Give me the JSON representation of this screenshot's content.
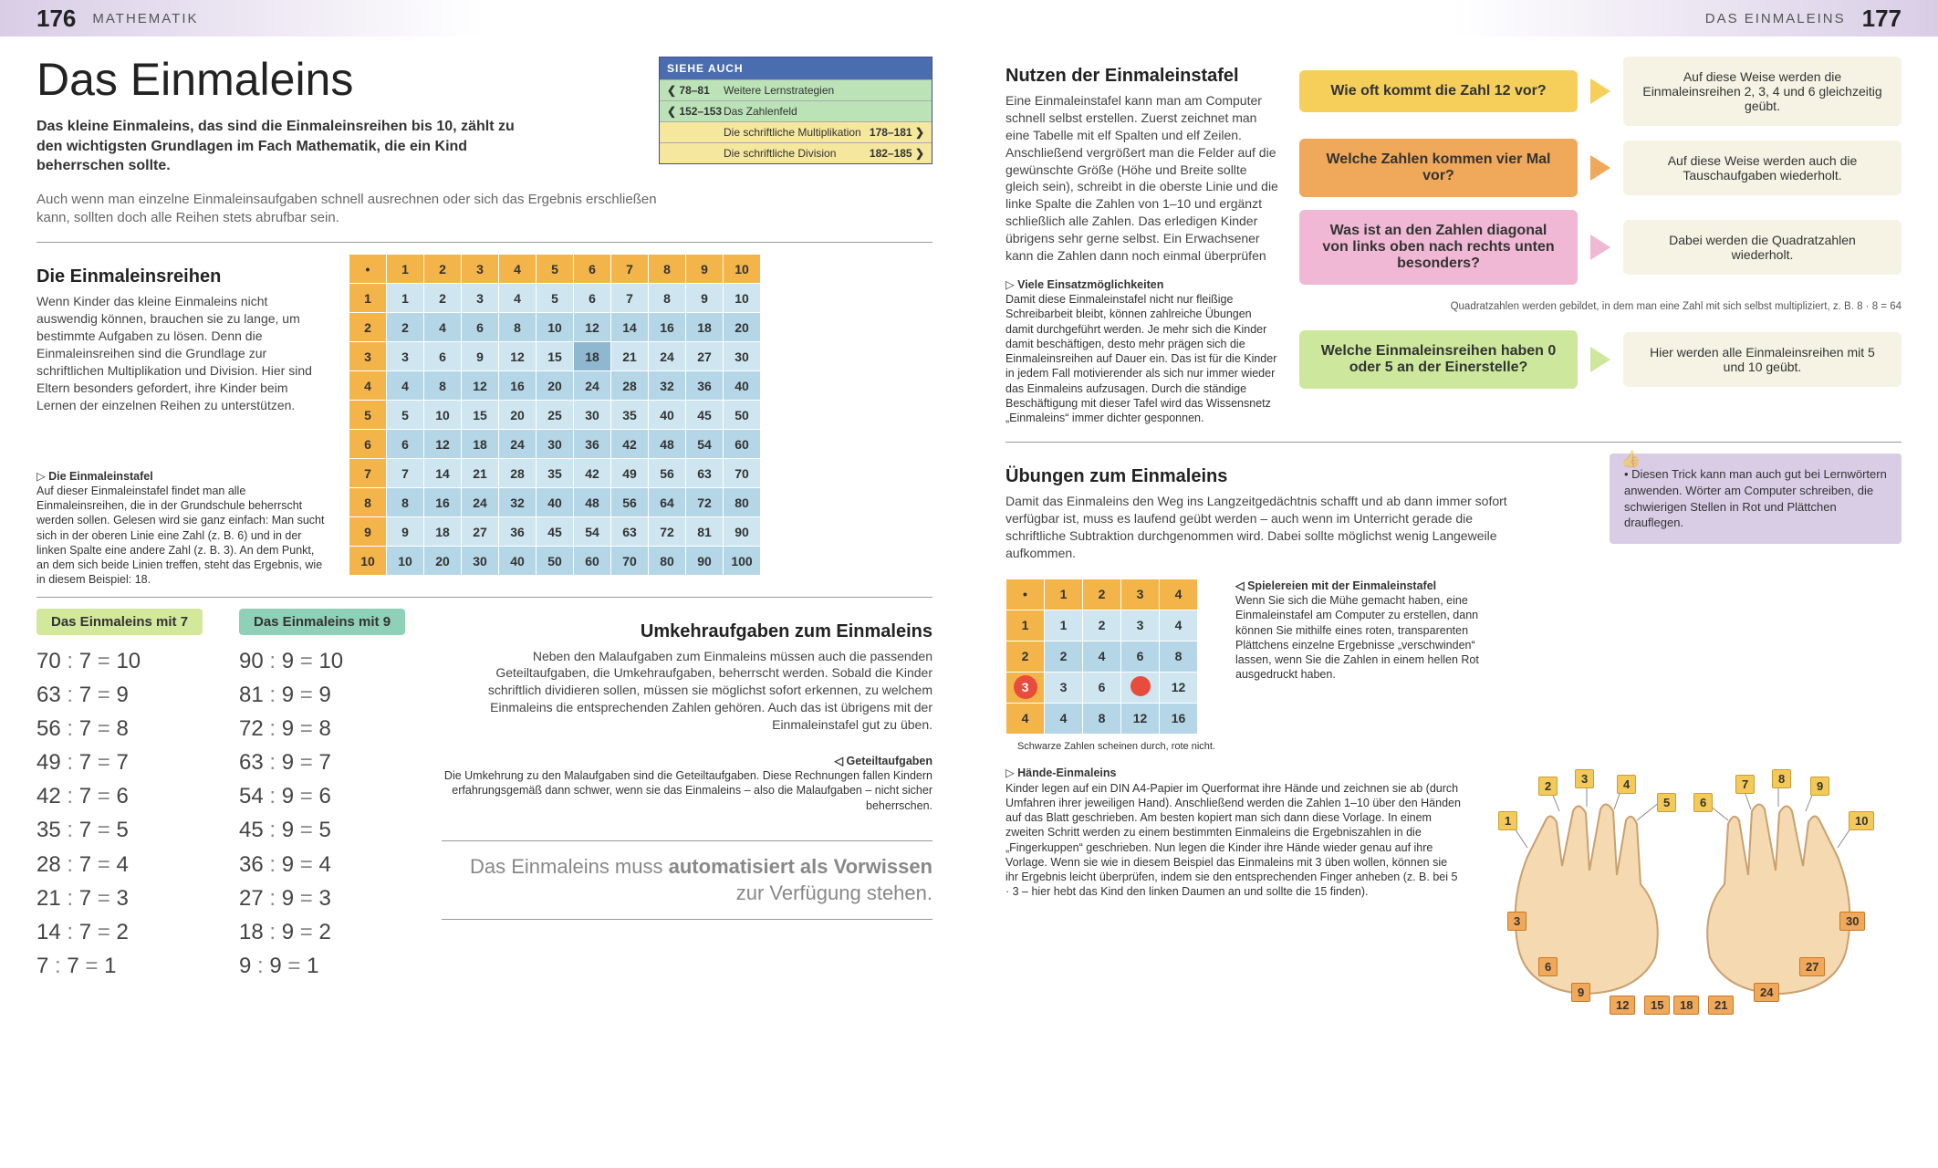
{
  "leftPage": {
    "pageNum": "176",
    "section": "MATHEMATIK",
    "title": "Das Einmaleins",
    "intro_bold": "Das kleine Einmaleins, das sind die Einmaleinsreihen bis 10, zählt zu den wichtigsten Grundlagen im Fach Mathematik, die ein Kind beherrschen sollte.",
    "intro_reg": "Auch wenn man einzelne Einmaleinsaufgaben schnell ausrechnen oder sich das Ergebnis erschließen kann, sollten doch alle Reihen stets abrufbar sein.",
    "seeAlso": {
      "header": "SIEHE AUCH",
      "rows": [
        {
          "cls": "g",
          "pg": "❮ 78–81",
          "lbl": "Weitere Lernstrategien",
          "arr": ""
        },
        {
          "cls": "g",
          "pg": "❮ 152–153",
          "lbl": "Das Zahlenfeld",
          "arr": ""
        },
        {
          "cls": "y",
          "pg": "",
          "lbl": "Die schriftliche Multiplikation",
          "arr": "178–181 ❯"
        },
        {
          "cls": "y",
          "pg": "",
          "lbl": "Die schriftliche Division",
          "arr": "182–185 ❯"
        }
      ]
    },
    "h2_rows": "Die Einmaleinsreihen",
    "rows_body": "Wenn Kinder das kleine Einmaleins nicht auswendig können, brauchen sie zu lange, um bestimmte Aufgaben zu lösen. Denn die Einmaleinsreihen sind die Grundlage zur schriftlichen Multiplikation und Division. Hier sind Eltern besonders gefordert, ihre Kinder beim Lernen der einzelnen Reihen zu unterstützen.",
    "caption1_title": "Die Einmaleinstafel",
    "caption1_body": "Auf dieser Einmaleinstafel findet man alle Einmaleinsreihen, die in der Grundschule beherrscht werden sollen. Gelesen wird sie ganz einfach: Man sucht sich in der oberen Linie eine Zahl (z. B. 6) und in der linken Spalte eine andere Zahl (z. B. 3). An dem Punkt, an dem sich beide Linien treffen, steht das Ergebnis, wie in diesem Beispiel: 18.",
    "multHeader": [
      "•",
      "1",
      "2",
      "3",
      "4",
      "5",
      "6",
      "7",
      "8",
      "9",
      "10"
    ],
    "multRows": [
      [
        "1",
        "1",
        "2",
        "3",
        "4",
        "5",
        "6",
        "7",
        "8",
        "9",
        "10"
      ],
      [
        "2",
        "2",
        "4",
        "6",
        "8",
        "10",
        "12",
        "14",
        "16",
        "18",
        "20"
      ],
      [
        "3",
        "3",
        "6",
        "9",
        "12",
        "15",
        "18",
        "21",
        "24",
        "27",
        "30"
      ],
      [
        "4",
        "4",
        "8",
        "12",
        "16",
        "20",
        "24",
        "28",
        "32",
        "36",
        "40"
      ],
      [
        "5",
        "5",
        "10",
        "15",
        "20",
        "25",
        "30",
        "35",
        "40",
        "45",
        "50"
      ],
      [
        "6",
        "6",
        "12",
        "18",
        "24",
        "30",
        "36",
        "42",
        "48",
        "54",
        "60"
      ],
      [
        "7",
        "7",
        "14",
        "21",
        "28",
        "35",
        "42",
        "49",
        "56",
        "63",
        "70"
      ],
      [
        "8",
        "8",
        "16",
        "24",
        "32",
        "40",
        "48",
        "56",
        "64",
        "72",
        "80"
      ],
      [
        "9",
        "9",
        "18",
        "27",
        "36",
        "45",
        "54",
        "63",
        "72",
        "81",
        "90"
      ],
      [
        "10",
        "10",
        "20",
        "30",
        "40",
        "50",
        "60",
        "70",
        "80",
        "90",
        "100"
      ]
    ],
    "highlight": {
      "row": 2,
      "col": 6
    },
    "div7_title": "Das Einmaleins mit 7",
    "div9_title": "Das Einmaleins mit 9",
    "div7": [
      [
        "70",
        "7",
        "10"
      ],
      [
        "63",
        "7",
        "9"
      ],
      [
        "56",
        "7",
        "8"
      ],
      [
        "49",
        "7",
        "7"
      ],
      [
        "42",
        "7",
        "6"
      ],
      [
        "35",
        "7",
        "5"
      ],
      [
        "28",
        "7",
        "4"
      ],
      [
        "21",
        "7",
        "3"
      ],
      [
        "14",
        "7",
        "2"
      ],
      [
        "7",
        "7",
        "1"
      ]
    ],
    "div9": [
      [
        "90",
        "9",
        "10"
      ],
      [
        "81",
        "9",
        "9"
      ],
      [
        "72",
        "9",
        "8"
      ],
      [
        "63",
        "9",
        "7"
      ],
      [
        "54",
        "9",
        "6"
      ],
      [
        "45",
        "9",
        "5"
      ],
      [
        "36",
        "9",
        "4"
      ],
      [
        "27",
        "9",
        "3"
      ],
      [
        "18",
        "9",
        "2"
      ],
      [
        "9",
        "9",
        "1"
      ]
    ],
    "h2_umkehr": "Umkehraufgaben zum Einmaleins",
    "umkehr_body": "Neben den Malaufgaben zum Einmaleins müssen auch die passenden Geteiltaufgaben, die Umkehraufgaben, beherrscht werden. Sobald die Kinder schriftlich dividieren sollen, müssen sie möglichst sofort erkennen, zu welchem Einmaleins die entsprechenden Zahlen gehören. Auch das ist übrigens mit der Einmaleinstafel gut zu üben.",
    "caption2_title": "Geteiltaufgaben",
    "caption2_body": "Die Umkehrung zu den Malaufgaben sind die Geteiltaufgaben. Diese Rechnungen fallen Kindern erfahrungsgemäß dann schwer, wenn sie das Einmaleins – also die Malaufgaben – nicht sicher beherrschen.",
    "quote_a": "Das Einmaleins muss ",
    "quote_b": "automatisiert als Vorwissen",
    "quote_c": " zur Verfügung stehen."
  },
  "rightPage": {
    "pageNum": "177",
    "section": "DAS EINMALEINS",
    "h2_nutzen": "Nutzen der Einmaleinstafel",
    "nutzen_body": "Eine Einmaleinstafel kann man am Computer schnell selbst erstellen. Zuerst zeichnet man eine Tabelle mit elf Spalten und elf Zeilen. Anschließend vergrößert man die Felder auf die gewünschte Größe (Höhe und Breite sollte gleich sein), schreibt in die oberste Linie und die linke Spalte die Zahlen von 1–10 und ergänzt schließlich alle Zahlen. Das erledigen Kinder übrigens sehr gerne selbst. Ein Erwachsener kann die Zahlen dann noch einmal überprüfen",
    "caption_viele_t": "Viele Einsatzmöglichkeiten",
    "caption_viele_b": "Damit diese Einmaleinstafel nicht nur fleißige Schreibarbeit bleibt, können zahlreiche Übungen damit durchgeführt werden. Je mehr sich die Kinder damit beschäftigen, desto mehr prägen sich die Einmaleinsreihen auf Dauer ein. Das ist für die Kinder in jedem Fall motivierender als sich nur immer wieder das Einmaleins aufzusagen. Durch die ständige Beschäftigung mit dieser Tafel wird das Wissensnetz „Einmaleins“ immer dichter gesponnen.",
    "callouts": [
      {
        "q": "Wie oft kommt die Zahl 12 vor?",
        "a": "Auf diese Weise werden die Einmaleinsreihen 2, 3, 4 und 6 gleichzeitig geübt.",
        "c": "yellow"
      },
      {
        "q": "Welche Zahlen kommen vier Mal vor?",
        "a": "Auf diese Weise werden auch die Tauschaufgaben wiederholt.",
        "c": "orange"
      },
      {
        "q": "Was ist an den Zahlen diagonal von links oben nach rechts unten besonders?",
        "a": "Dabei werden die Quadratzahlen wiederholt.",
        "c": "pink"
      },
      {
        "q": "Welche Einmaleinsreihen haben 0 oder 5 an der Einerstelle?",
        "a": "Hier werden alle Einmaleinsreihen mit 5 und 10 geübt.",
        "c": "green"
      }
    ],
    "qnote": "Quadratzahlen werden gebildet, in dem man eine Zahl mit sich selbst multipliziert, z. B. 8 · 8 = 64",
    "h2_ueb": "Übungen zum Einmaleins",
    "ueb_body": "Damit das Einmaleins den Weg ins Langzeitgedächtnis schafft und ab dann immer sofort verfügbar ist, muss es laufend geübt werden – auch wenn im Unterricht gerade die schriftliche Subtraktion durchgenommen wird. Dabei sollte möglichst wenig Langeweile aufkommen.",
    "tip": "• Diesen Trick kann man auch gut bei Lernwörtern anwenden. Wörter am Computer schreiben, die schwierigen Stellen in Rot und Plättchen drauflegen.",
    "smallHeader": [
      "•",
      "1",
      "2",
      "3",
      "4"
    ],
    "smallRows": [
      [
        "1",
        "1",
        "2",
        "3",
        "4"
      ],
      [
        "2",
        "2",
        "4",
        "6",
        "8"
      ],
      [
        "3",
        "3",
        "6",
        "●",
        "12"
      ],
      [
        "4",
        "4",
        "8",
        "12",
        "16"
      ]
    ],
    "caption_sp_t": "Spielereien mit der Einmaleinstafel",
    "caption_sp_b": "Wenn Sie sich die Mühe gemacht haben, eine Einmaleinstafel am Computer zu erstellen, dann können Sie mithilfe eines roten, transparenten Plättchens einzelne Ergebnisse „verschwinden“ lassen, wenn Sie die Zahlen in einem hellen Rot ausgedruckt haben.",
    "arrow_note": "Schwarze Zahlen scheinen durch, rote nicht.",
    "caption_hand_t": "Hände-Einmaleins",
    "caption_hand_b": "Kinder legen auf ein DIN A4-Papier im Querformat ihre Hände und zeichnen sie ab (durch Umfahren ihrer jeweiligen Hand). Anschließend werden die Zahlen 1–10 über den Händen auf das Blatt geschrieben. Am besten kopiert man sich dann diese Vorlage. In einem zweiten Schritt werden zu einem bestimmten Einmaleins die Ergebniszahlen in die „Fingerkuppen“ geschrieben. Nun legen die Kinder ihre Hände wieder genau auf ihre Vorlage. Wenn sie wie in diesem Beispiel das Einmaleins mit 3 üben wollen, können sie ihr Ergebnis leicht überprüfen, indem sie den entsprechenden Finger anheben (z. B. bei 5 · 3 – hier hebt das Kind den linken Daumen an und sollte die 15 finden).",
    "handTop": [
      "1",
      "2",
      "3",
      "4",
      "5",
      "6",
      "7",
      "8",
      "9",
      "10"
    ],
    "handBottom": [
      "3",
      "6",
      "9",
      "12",
      "15",
      "18",
      "21",
      "24",
      "27",
      "30"
    ]
  }
}
